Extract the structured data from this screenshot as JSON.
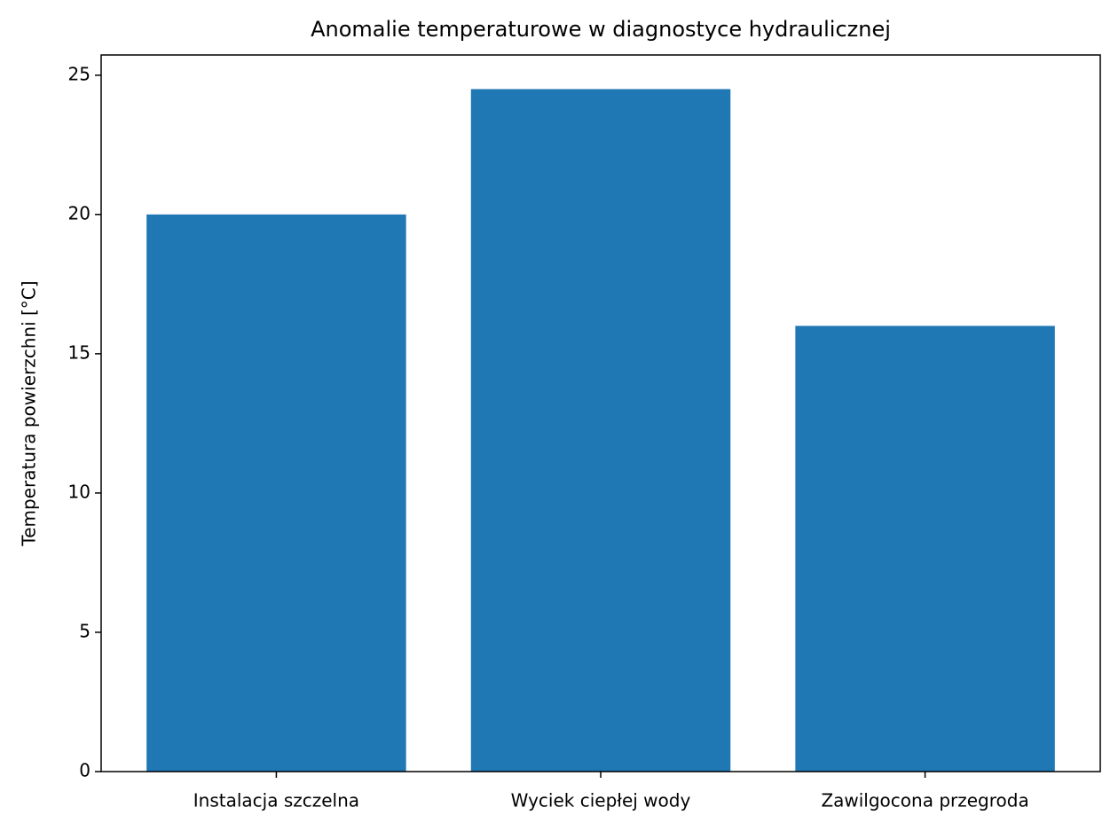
{
  "chart_data": {
    "type": "bar",
    "title": "Anomalie temperaturowe w diagnostyce hydraulicznej",
    "y_label": "Temperatura powierzchni [°C]",
    "categories": [
      "Instalacja szczelna",
      "Wyciek ciepłej wody",
      "Zawilgocona przegroda"
    ],
    "values": [
      20,
      24.5,
      16
    ],
    "color": "#1f77b4",
    "ylim": [
      0,
      25.725
    ],
    "yticks": [
      0,
      5,
      10,
      15,
      20,
      25
    ],
    "grid": false
  }
}
